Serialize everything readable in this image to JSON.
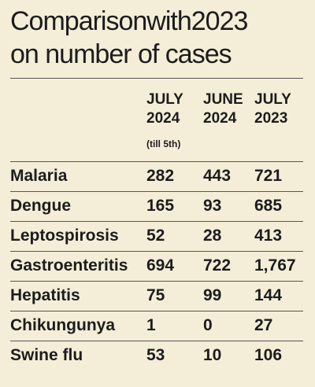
{
  "chart_data": {
    "type": "table",
    "title": "Comparison with 2023 on number of cases",
    "title_lines": [
      "Comparisonwith2023",
      "on number of cases"
    ],
    "columns": [
      {
        "line1": "JULY",
        "line2": "2024",
        "note": "(till 5th)"
      },
      {
        "line1": "JUNE",
        "line2": "2024",
        "note": ""
      },
      {
        "line1": "JULY",
        "line2": "2023",
        "note": ""
      }
    ],
    "rows": [
      {
        "label": "Malaria",
        "values": [
          "282",
          "443",
          "721"
        ]
      },
      {
        "label": "Dengue",
        "values": [
          "165",
          "93",
          "685"
        ]
      },
      {
        "label": "Leptospirosis",
        "values": [
          "52",
          "28",
          "413"
        ]
      },
      {
        "label": "Gastroenteritis",
        "values": [
          "694",
          "722",
          "1,767"
        ]
      },
      {
        "label": "Hepatitis",
        "values": [
          "75",
          "99",
          "144"
        ]
      },
      {
        "label": "Chikungunya",
        "values": [
          "1",
          "0",
          "27"
        ]
      },
      {
        "label": "Swine flu",
        "values": [
          "53",
          "10",
          "106"
        ]
      }
    ]
  },
  "colors": {
    "background": "#f4eed8",
    "text": "#1c1c1c",
    "rule": "#555555"
  }
}
